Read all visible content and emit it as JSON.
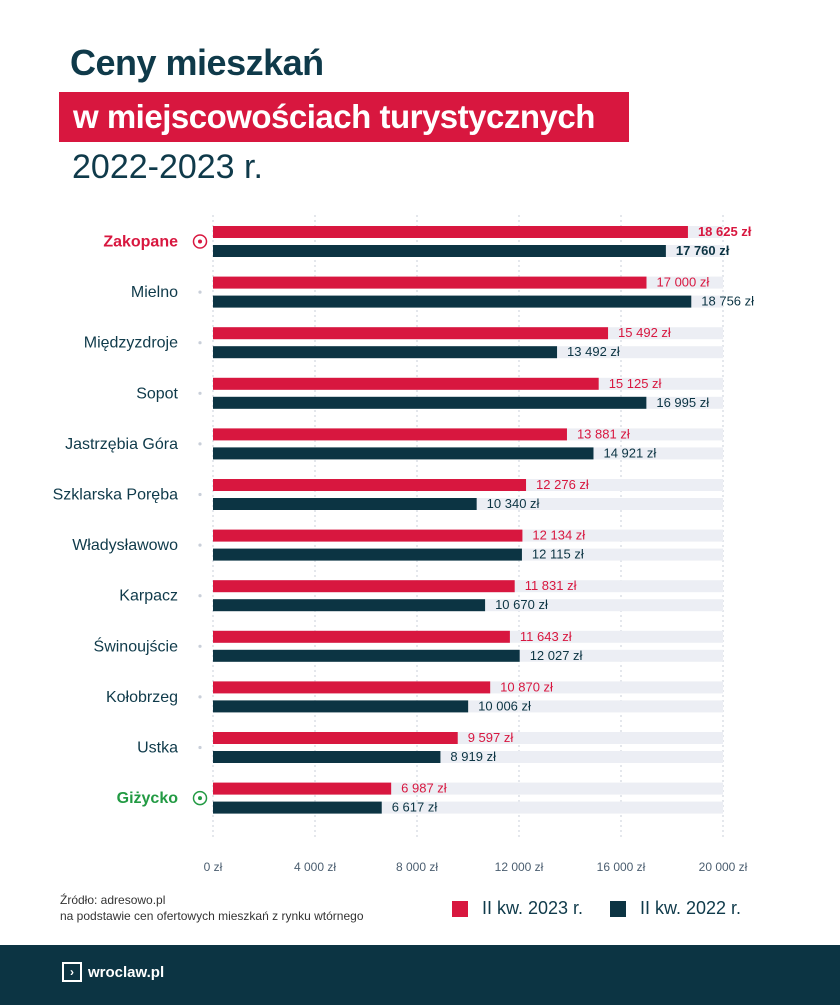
{
  "title": {
    "line1": "Ceny mieszkań",
    "line2": "w miejscowościach turystycznych",
    "line3": "2022-2023 r."
  },
  "colors": {
    "series2023": "#d8173f",
    "series2022": "#0c3443",
    "track": "#eceef4",
    "highlight_top": "#d8173f",
    "highlight_bottom": "#229a43"
  },
  "chart_data": {
    "type": "bar",
    "orientation": "horizontal",
    "title": "Ceny mieszkań w miejscowościach turystycznych 2022-2023 r.",
    "categories": [
      "Zakopane",
      "Mielno",
      "Międzyzdroje",
      "Sopot",
      "Jastrzębia Góra",
      "Szklarska Poręba",
      "Władysławowo",
      "Karpacz",
      "Świnoujście",
      "Kołobrzeg",
      "Ustka",
      "Giżycko"
    ],
    "series": [
      {
        "name": "II kw. 2023 r.",
        "values": [
          18625,
          17000,
          15492,
          15125,
          13881,
          12276,
          12134,
          11831,
          11643,
          10870,
          9597,
          6987
        ],
        "labels": [
          "18 625 zł",
          "17 000 zł",
          "15 492 zł",
          "15 125 zł",
          "13 881 zł",
          "12 276 zł",
          "12 134 zł",
          "11 831 zł",
          "11 643 zł",
          "10 870 zł",
          "9 597 zł",
          "6 987 zł"
        ]
      },
      {
        "name": "II kw. 2022 r.",
        "values": [
          17760,
          18756,
          13492,
          16995,
          14921,
          10340,
          12115,
          10670,
          12027,
          10006,
          8919,
          6617
        ],
        "labels": [
          "17 760 zł",
          "18 756 zł",
          "13 492 zł",
          "16 995 zł",
          "14 921 zł",
          "10 340 zł",
          "12 115 zł",
          "10 670 zł",
          "12 027 zł",
          "10 006 zł",
          "8 919 zł",
          "6 617 zł"
        ]
      }
    ],
    "xlim": [
      0,
      20000
    ],
    "ticks": [
      0,
      4000,
      8000,
      12000,
      16000,
      20000
    ],
    "tick_labels": [
      "0 zł",
      "4 000 zł",
      "8 000 zł",
      "12 000 zł",
      "16 000 zł",
      "20 000 zł"
    ],
    "highlighted": {
      "Zakopane": "max",
      "Giżycko": "min"
    },
    "grid": true,
    "legend": "bottom-right"
  },
  "source": {
    "line1": "Źródło: adresowo.pl",
    "line2": "na podstawie cen ofertowych mieszkań z rynku wtórnego"
  },
  "legend": {
    "item2023": "II kw. 2023 r.",
    "item2022": "II kw. 2022 r."
  },
  "brand": {
    "logo_text": "wroclaw.pl",
    "logo_icon": "chevron-right-icon"
  }
}
